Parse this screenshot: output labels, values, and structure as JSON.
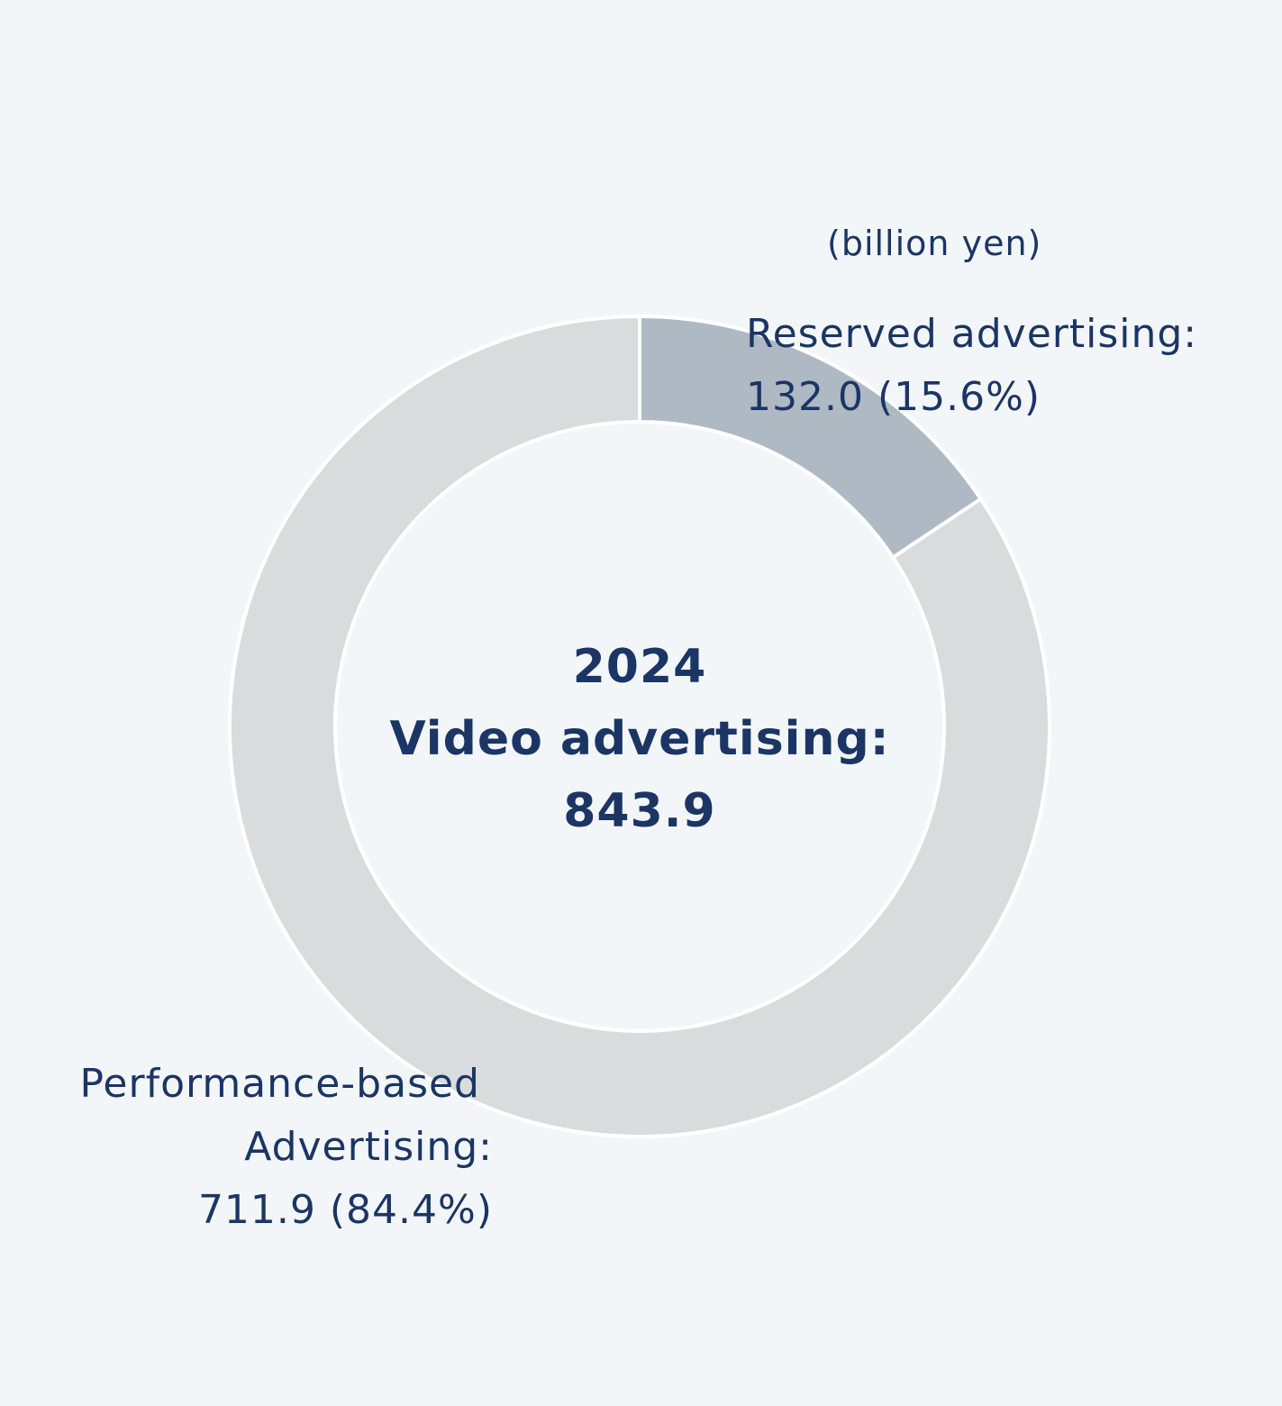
{
  "chart_data": {
    "type": "pie",
    "variant": "donut",
    "unit_label": "(billion yen)",
    "center": {
      "year": "2024",
      "title": "Video advertising:",
      "total": "843.9"
    },
    "slices": [
      {
        "name": "Reserved advertising:",
        "value": 132.0,
        "percent": 15.6,
        "value_label": "132.0 (15.6%)",
        "color": "#aeb9c3"
      },
      {
        "name_line1": "Performance-based",
        "name_line2": "Advertising:",
        "value": 711.9,
        "percent": 84.4,
        "value_label": "711.9 (84.4%)",
        "color": "#d9dcdc"
      }
    ]
  },
  "colors": {
    "background": "#f3f6f9",
    "text": "#1b3564",
    "separator": "#ffffff"
  }
}
